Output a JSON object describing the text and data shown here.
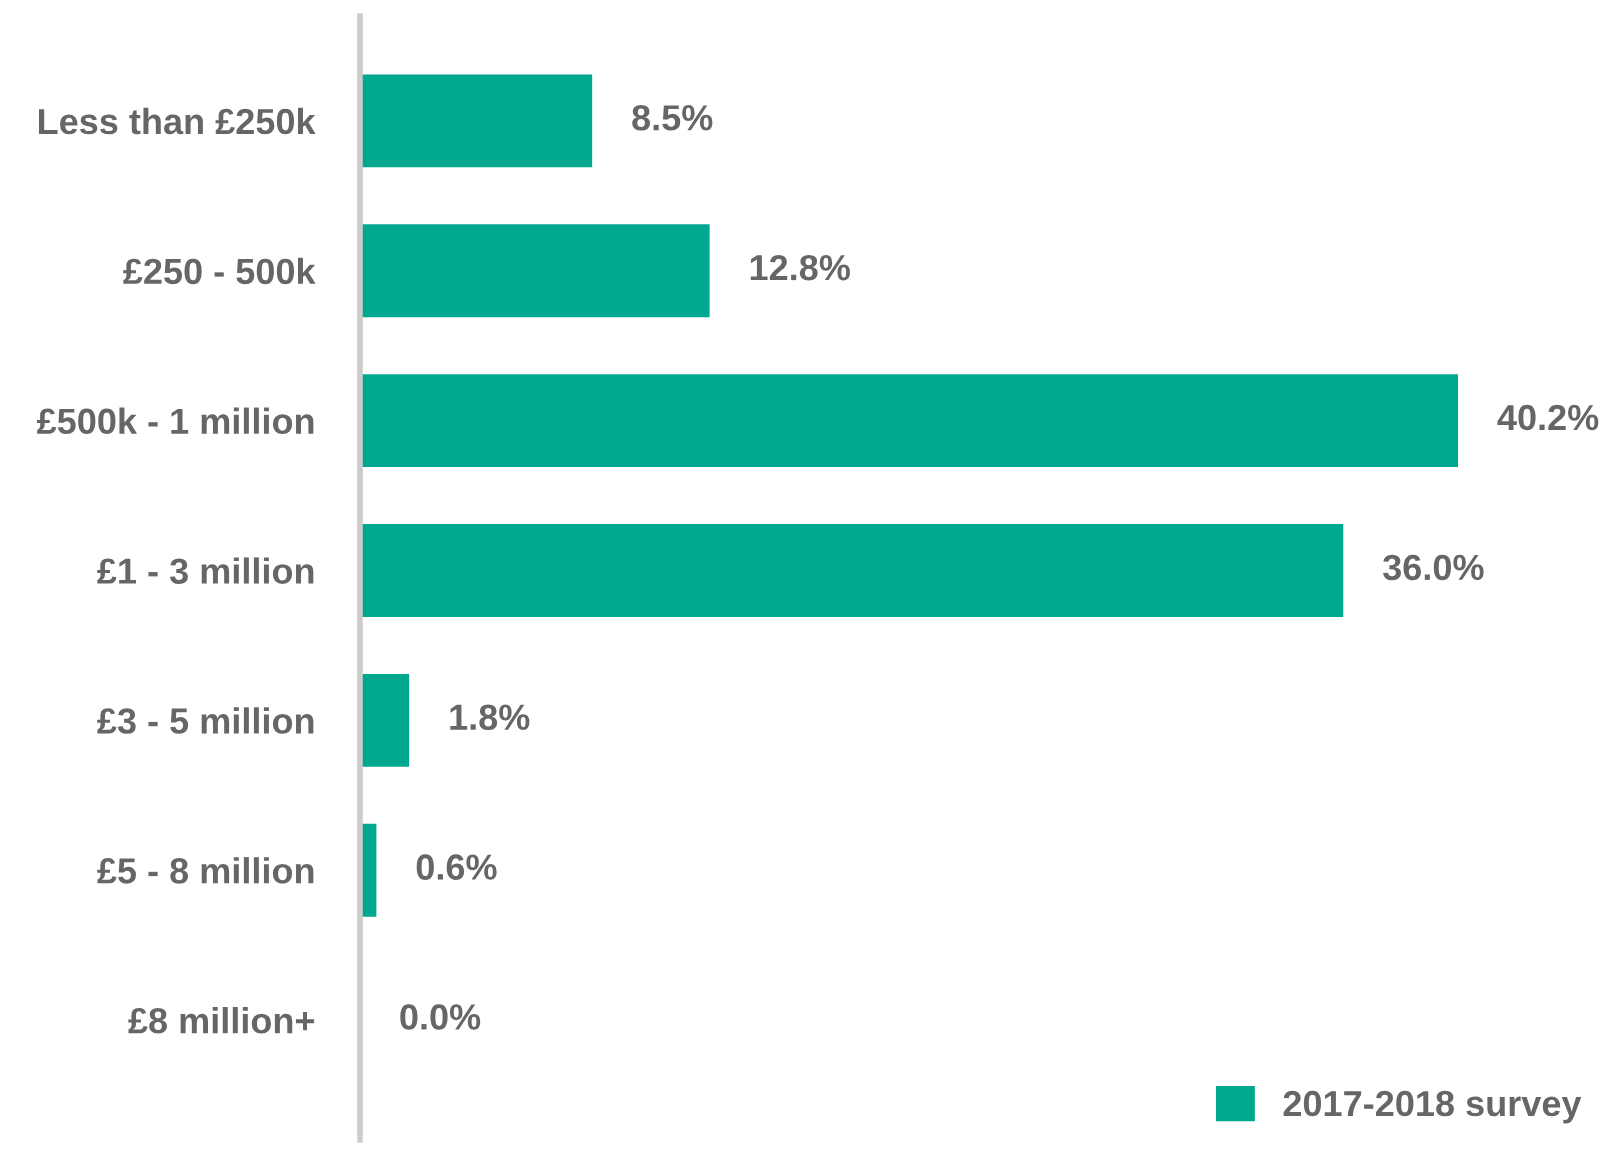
{
  "chart_data": {
    "type": "bar",
    "orientation": "horizontal",
    "categories": [
      "Less than £250k",
      "£250 - 500k",
      "£500k - 1 million",
      "£1 - 3 million",
      "£3 - 5 million",
      "£5 - 8 million",
      "£8 million+"
    ],
    "series": [
      {
        "name": "2017-2018 survey",
        "color": "#00a88f",
        "values": [
          8.5,
          12.8,
          40.2,
          36.0,
          1.8,
          0.6,
          0.0
        ],
        "value_labels": [
          "8.5%",
          "12.8%",
          "40.2%",
          "36.0%",
          "1.8%",
          "0.6%",
          "0.0%"
        ]
      }
    ],
    "legend": "bottom right",
    "grid": false
  }
}
